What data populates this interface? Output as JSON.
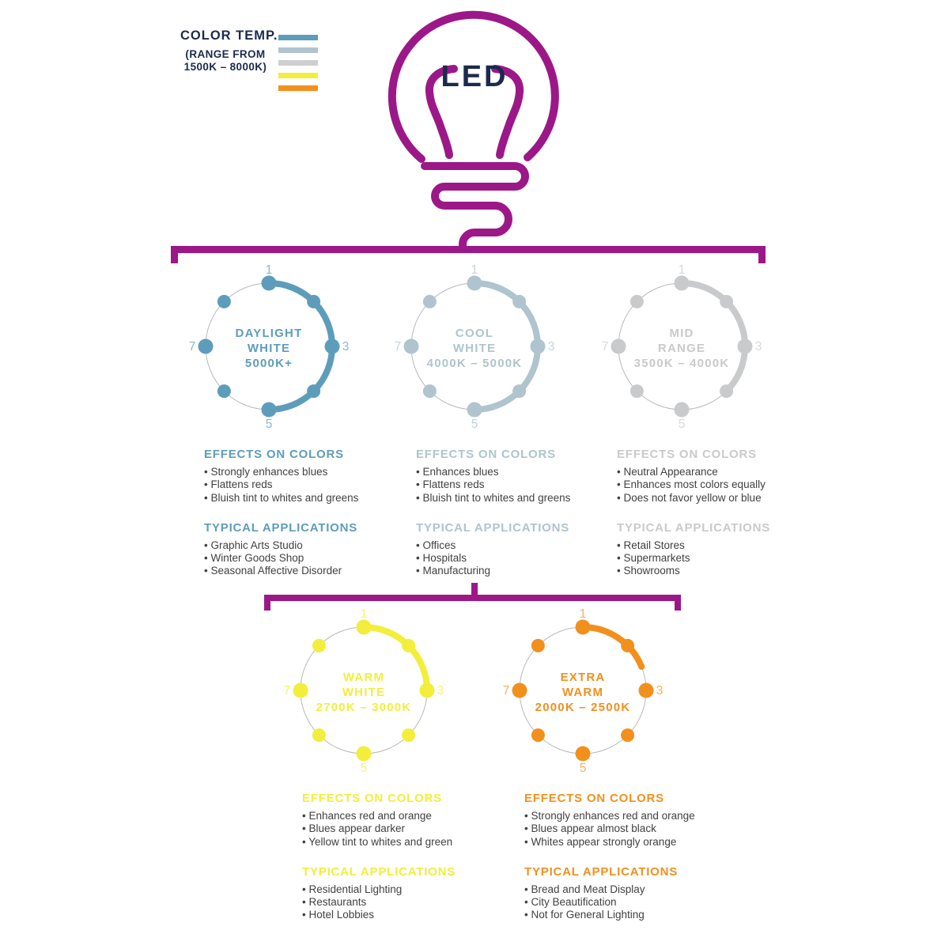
{
  "palette": {
    "connector_purple": "#9C1888",
    "heading_navy": "#1B2A4D",
    "body_text": "#414042",
    "circle_outline": "#B7B8BA"
  },
  "legend": {
    "title": "COLOR TEMP.",
    "subtitle_line1": "(RANGE FROM",
    "subtitle_line2": "1500K – 8000K)",
    "swatches": [
      "#5D9DBB",
      "#AFC4CE",
      "#CDCECF",
      "#F2EE3B",
      "#F2901D"
    ]
  },
  "bulb": {
    "label": "LED",
    "outline_color": "#9C1888",
    "label_color": "#1B2A4D"
  },
  "scale_labels": [
    "1",
    "3",
    "5",
    "7"
  ],
  "categories": [
    {
      "id": "daylight-white",
      "name_lines": [
        "DAYLIGHT",
        "WHITE",
        "5000K+"
      ],
      "color": "#5D9DBB",
      "arc_degrees": 180,
      "effects": {
        "title": "EFFECTS ON COLORS",
        "items": [
          "Strongly enhances blues",
          "Flattens reds",
          "Bluish tint to whites and greens"
        ]
      },
      "applications": {
        "title": "TYPICAL APPLICATIONS",
        "items": [
          "Graphic Arts Studio",
          "Winter Goods Shop",
          "Seasonal Affective Disorder"
        ]
      }
    },
    {
      "id": "cool-white",
      "name_lines": [
        "COOL",
        "WHITE",
        "4000K – 5000K"
      ],
      "color": "#AFC4CE",
      "arc_degrees": 180,
      "effects": {
        "title": "EFFECTS ON COLORS",
        "items": [
          "Enhances blues",
          "Flattens reds",
          "Bluish tint to whites and greens"
        ]
      },
      "applications": {
        "title": "TYPICAL APPLICATIONS",
        "items": [
          "Offices",
          "Hospitals",
          "Manufacturing"
        ]
      }
    },
    {
      "id": "mid-range",
      "name_lines": [
        "MID",
        "RANGE",
        "3500K – 4000K"
      ],
      "color": "#C9CACB",
      "arc_degrees": 135,
      "effects": {
        "title": "EFFECTS ON COLORS",
        "items": [
          "Neutral Appearance",
          "Enhances most colors equally",
          "Does not favor yellow or blue"
        ]
      },
      "applications": {
        "title": "TYPICAL APPLICATIONS",
        "items": [
          "Retail Stores",
          "Supermarkets",
          "Showrooms"
        ]
      }
    },
    {
      "id": "warm-white",
      "name_lines": [
        "WARM",
        "WHITE",
        "2700K – 3000K"
      ],
      "color": "#F2EE3B",
      "arc_degrees": 90,
      "effects": {
        "title": "EFFECTS ON COLORS",
        "items": [
          "Enhances red and orange",
          "Blues appear darker",
          "Yellow tint to whites and green"
        ]
      },
      "applications": {
        "title": "TYPICAL APPLICATIONS",
        "items": [
          "Residential Lighting",
          "Restaurants",
          "Hotel Lobbies"
        ]
      }
    },
    {
      "id": "extra-warm",
      "name_lines": [
        "EXTRA",
        "WARM",
        "2000K – 2500K"
      ],
      "color": "#F2901D",
      "arc_degrees": 68,
      "effects": {
        "title": "EFFECTS ON COLORS",
        "items": [
          "Strongly enhances red and orange",
          "Blues appear almost black",
          "Whites appear strongly orange"
        ]
      },
      "applications": {
        "title": "TYPICAL APPLICATIONS",
        "items": [
          "Bread and Meat Display",
          "City Beautification",
          "Not for General Lighting"
        ]
      }
    }
  ]
}
